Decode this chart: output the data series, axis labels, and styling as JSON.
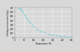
{
  "title": "",
  "xlabel": "Temperature (K)",
  "ylabel": "Enthalpy of conversion (kJ/kg)",
  "xlim": [
    0,
    300
  ],
  "ylim": [
    0,
    700
  ],
  "xticks": [
    0,
    50,
    100,
    150,
    200,
    250,
    300
  ],
  "yticks": [
    0,
    100,
    200,
    300,
    400,
    500,
    600,
    700
  ],
  "line_color": "#55c8d8",
  "background_color": "#d8d8d8",
  "grid_color": "#ffffff",
  "curve_x": [
    20,
    25,
    30,
    35,
    40,
    50,
    60,
    70,
    80,
    90,
    100,
    120,
    140,
    160,
    180,
    200,
    220,
    240,
    260,
    280,
    300
  ],
  "curve_y": [
    700,
    690,
    670,
    645,
    610,
    535,
    465,
    400,
    345,
    295,
    255,
    190,
    145,
    110,
    82,
    60,
    44,
    32,
    22,
    14,
    7
  ]
}
